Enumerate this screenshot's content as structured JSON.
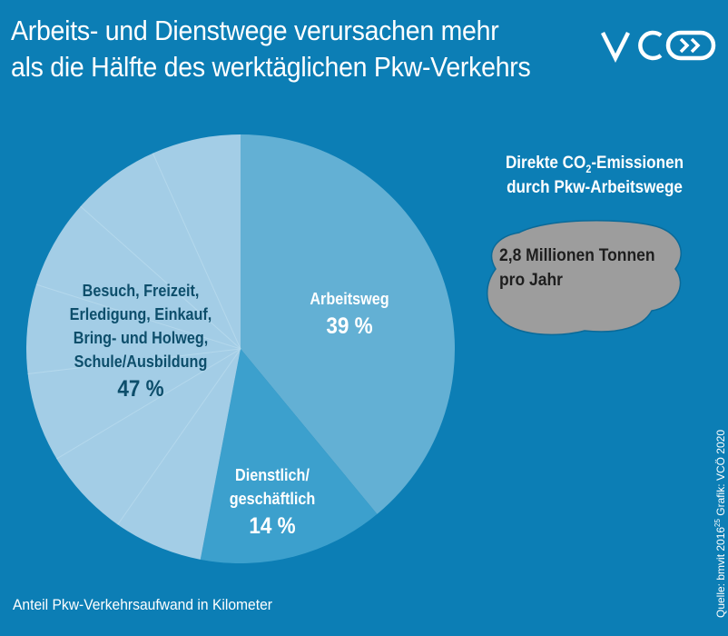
{
  "header": {
    "title_line1": "Arbeits- und Dienstwege verursachen mehr",
    "title_line2": "als die Hälfte des werktäglichen Pkw-Verkehrs",
    "logo_text": "VCÖ"
  },
  "colors": {
    "background": "#0c7eb5",
    "arbeitsweg": "#63b0d4",
    "dienstlich": "#3ca0cd",
    "besuch": "#a3cde6",
    "cloud": "#9d9d9d"
  },
  "chart_data": {
    "type": "pie",
    "categories": [
      "Arbeitsweg",
      "Dienstlich/ geschäftlich",
      "Besuch, Freizeit, Erledigung, Einkauf, Bring- und Holweg, Schule/Ausbildung"
    ],
    "values": [
      39,
      14,
      47
    ],
    "unit": "%",
    "title": "",
    "slices": [
      {
        "label_lines": [
          "Arbeitsweg"
        ],
        "value": 39,
        "value_label": "39 %"
      },
      {
        "label_lines": [
          "Dienstlich/",
          "geschäftlich"
        ],
        "value": 14,
        "value_label": "14 %"
      },
      {
        "label_lines": [
          "Besuch, Freizeit,",
          "Erledigung, Einkauf,",
          "Bring- und Holweg,",
          "Schule/Ausbildung"
        ],
        "value": 47,
        "value_label": "47 %"
      }
    ]
  },
  "co2": {
    "title_pre": "Direkte CO",
    "title_sub": "2",
    "title_post": "-Emissionen",
    "title_line2": "durch Pkw-Arbeitswege",
    "value_line1": "2,8 Millionen Tonnen",
    "value_line2": "pro Jahr"
  },
  "footer": {
    "caption": "Anteil Pkw-Verkehrsaufwand in Kilometer",
    "source_pre": "Quelle: bmvit 2016",
    "source_sup": "25",
    "source_post": " Grafik: VCÖ 2020"
  }
}
